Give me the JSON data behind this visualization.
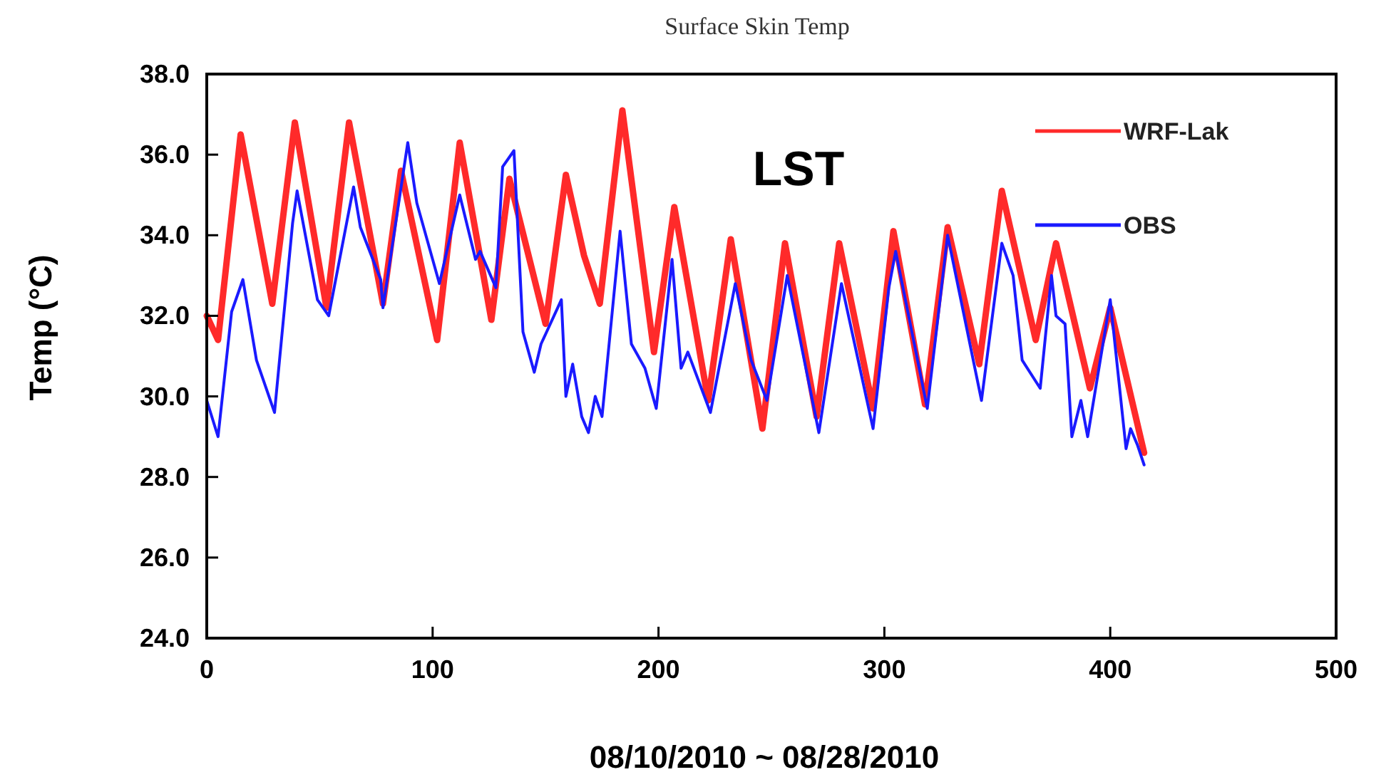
{
  "chart_data": {
    "type": "line",
    "title": "Surface Skin Temp",
    "xlabel": "08/10/2010 ~ 08/28/2010",
    "ylabel": "Temp (°C)",
    "annotations": [
      "LST"
    ],
    "xlim": [
      0,
      500
    ],
    "xticks": [
      0,
      100,
      200,
      300,
      400,
      500
    ],
    "ylim": [
      24,
      38
    ],
    "yticks": [
      {
        "value": 24,
        "label": "24.0"
      },
      {
        "value": 26,
        "label": "26.0"
      },
      {
        "value": 28,
        "label": "28.0"
      },
      {
        "value": 30,
        "label": "30.0"
      },
      {
        "value": 32,
        "label": "32.0"
      },
      {
        "value": 34,
        "label": "34.0"
      },
      {
        "value": 36,
        "label": "36.0"
      },
      {
        "value": 38,
        "label": "38.0"
      }
    ],
    "grid": false,
    "legend": "top right",
    "marker": "none",
    "line_style": "solid",
    "series": [
      {
        "name": "WRF-Lak",
        "color": "#ff2a2a",
        "x": [
          0,
          5,
          15,
          29,
          39,
          53,
          63,
          78,
          86,
          102,
          112,
          126,
          134,
          142,
          150,
          159,
          167,
          174,
          184,
          198,
          207,
          222,
          232,
          246,
          256,
          270,
          280,
          295,
          304,
          318,
          328,
          342,
          352,
          367,
          376,
          391,
          400,
          415
        ],
        "values": [
          32.0,
          31.4,
          36.5,
          32.3,
          36.8,
          32.2,
          36.8,
          32.3,
          35.6,
          31.4,
          36.3,
          31.9,
          35.4,
          33.6,
          31.8,
          35.5,
          33.5,
          32.3,
          37.1,
          31.1,
          34.7,
          29.9,
          33.9,
          29.2,
          33.8,
          29.5,
          33.8,
          29.7,
          34.1,
          29.8,
          34.2,
          30.8,
          35.1,
          31.4,
          33.8,
          30.2,
          32.2,
          28.6
        ]
      },
      {
        "name": "OBS",
        "color": "#1a1aff",
        "x": [
          0,
          5,
          11,
          16,
          22,
          30,
          38,
          40,
          49,
          54,
          65,
          68,
          77,
          78,
          89,
          93,
          100,
          103,
          112,
          119,
          121,
          128,
          131,
          136,
          140,
          145,
          148,
          157,
          159,
          162,
          166,
          169,
          172,
          175,
          183,
          188,
          194,
          199,
          206,
          210,
          213,
          223,
          234,
          241,
          248,
          257,
          271,
          281,
          295,
          302,
          305,
          319,
          328,
          343,
          352,
          357,
          361,
          369,
          374,
          376,
          380,
          383,
          387,
          390,
          400,
          407,
          409,
          412,
          415
        ],
        "values": [
          29.9,
          29.0,
          32.1,
          32.9,
          30.9,
          29.6,
          34.3,
          35.1,
          32.4,
          32.0,
          35.2,
          34.2,
          32.9,
          32.2,
          36.3,
          34.8,
          33.4,
          32.8,
          35.0,
          33.4,
          33.6,
          32.7,
          35.7,
          36.1,
          31.6,
          30.6,
          31.3,
          32.4,
          30.0,
          30.8,
          29.5,
          29.1,
          30.0,
          29.5,
          34.1,
          31.3,
          30.7,
          29.7,
          33.4,
          30.7,
          31.1,
          29.6,
          32.8,
          30.9,
          29.9,
          33.0,
          29.1,
          32.8,
          29.2,
          32.7,
          33.6,
          29.7,
          34.0,
          29.9,
          33.8,
          33.0,
          30.9,
          30.2,
          33.0,
          32.0,
          31.8,
          29.0,
          29.9,
          29.0,
          32.4,
          28.7,
          29.2,
          28.8,
          28.3
        ]
      }
    ]
  }
}
